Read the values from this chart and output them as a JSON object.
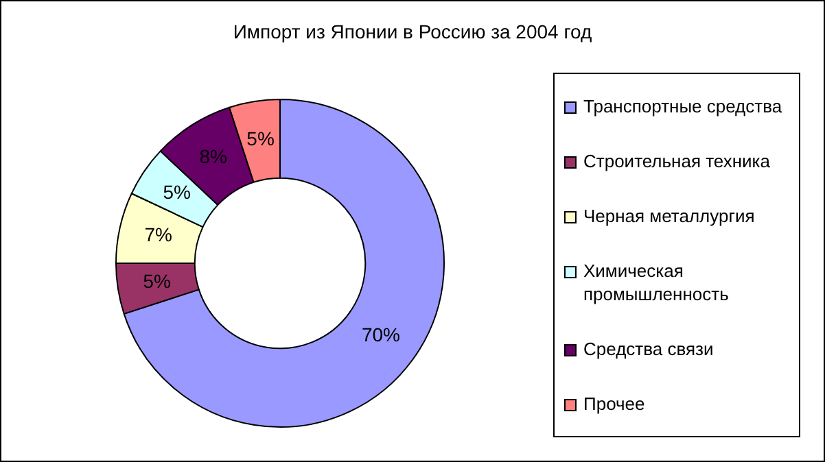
{
  "chart_data": {
    "type": "donut",
    "title": "Импорт из Японии в Россию за 2004 год",
    "categories": [
      "Транспортные средства",
      "Строительная техника",
      "Черная металлургия",
      "Химическая промышленность",
      "Средства связи",
      "Прочее"
    ],
    "values": [
      70,
      5,
      7,
      5,
      8,
      5
    ],
    "colors": [
      "#9999ff",
      "#993366",
      "#ffffcc",
      "#ccffff",
      "#660066",
      "#ff8080"
    ],
    "value_labels": [
      "70%",
      "5%",
      "7%",
      "5%",
      "8%",
      "5%"
    ],
    "legend": "right"
  }
}
